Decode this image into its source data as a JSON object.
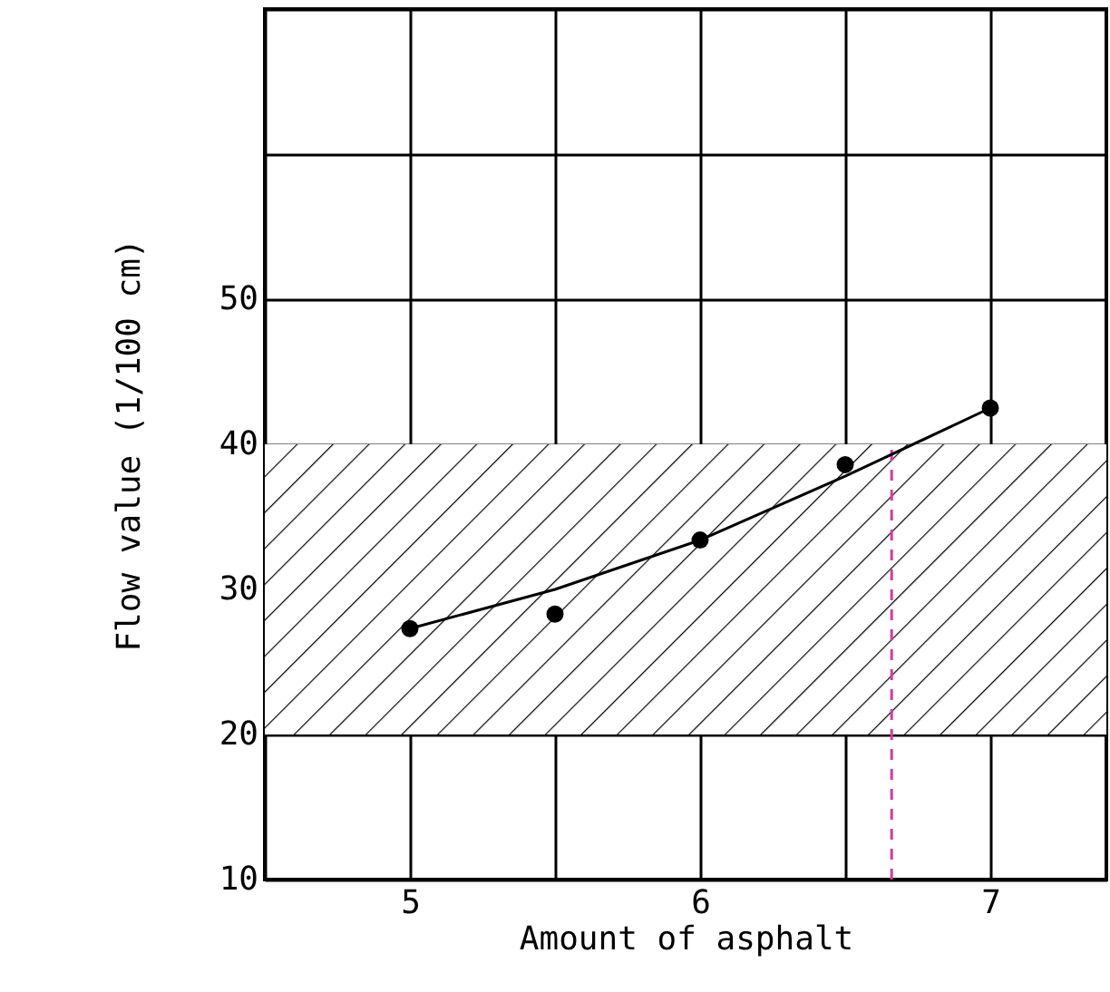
{
  "chart_data": {
    "type": "scatter",
    "xlabel": "Amount of asphalt",
    "ylabel": "Flow value (1/100 cm)",
    "xlim": [
      4.5,
      7.4
    ],
    "xticks": [
      {
        "value": 4.5,
        "label": null
      },
      5,
      {
        "value": 5.5,
        "label": null
      },
      6,
      {
        "value": 6.5,
        "label": null
      },
      7
    ],
    "ylim": [
      10,
      70
    ],
    "yticks": [
      10,
      20,
      30,
      40,
      50,
      {
        "value": 60,
        "label": null
      },
      {
        "value": 70,
        "label": null
      }
    ],
    "grid": true,
    "marker": "circle",
    "series": [
      {
        "type": "scatter",
        "color": "#000000",
        "x": [
          5,
          5.5,
          6,
          6.5,
          7
        ],
        "values": [
          27.3,
          28.3,
          33.4,
          38.6,
          42.5
        ]
      },
      {
        "type": "line",
        "color": "#000000",
        "marker": "none",
        "x": [
          5,
          5.5,
          6,
          6.5,
          7
        ],
        "values": [
          27.3,
          30,
          33.4,
          37.8,
          42.5
        ]
      }
    ],
    "bands": [
      {
        "axis": "y",
        "from": 20,
        "to": 40,
        "color": "#000000"
      }
    ],
    "ref_lines": [
      {
        "axis": "x",
        "value": 6.66,
        "color": "#d63c9a",
        "line_style": "dashed"
      }
    ]
  }
}
